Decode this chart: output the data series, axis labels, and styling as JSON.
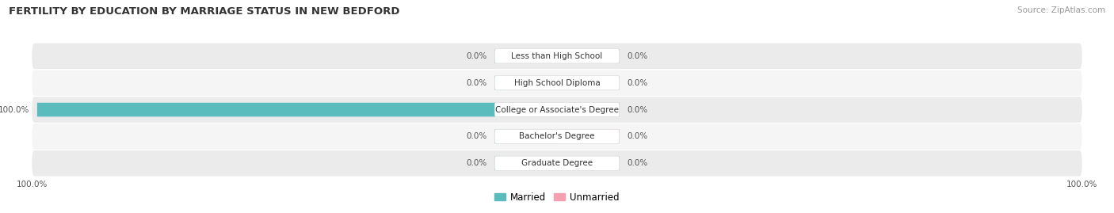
{
  "title": "FERTILITY BY EDUCATION BY MARRIAGE STATUS IN NEW BEDFORD",
  "source": "Source: ZipAtlas.com",
  "categories": [
    "Less than High School",
    "High School Diploma",
    "College or Associate's Degree",
    "Bachelor's Degree",
    "Graduate Degree"
  ],
  "married_values": [
    0.0,
    0.0,
    100.0,
    0.0,
    0.0
  ],
  "unmarried_values": [
    0.0,
    0.0,
    0.0,
    0.0,
    0.0
  ],
  "married_color": "#5bbcbe",
  "unmarried_color": "#f4a0b0",
  "row_bg_color": "#ebebeb",
  "row_bg_color_alt": "#f5f5f5",
  "label_color": "#555555",
  "category_color": "#333333",
  "title_color": "#333333",
  "source_color": "#999999",
  "background_color": "#ffffff",
  "title_fontsize": 9.5,
  "source_fontsize": 7.5,
  "label_fontsize": 7.5,
  "category_fontsize": 7.5,
  "legend_fontsize": 8.5,
  "x_min": -100,
  "x_max": 100,
  "default_bar_width": 12,
  "bottom_left_label": "100.0%",
  "bottom_right_label": "100.0%"
}
